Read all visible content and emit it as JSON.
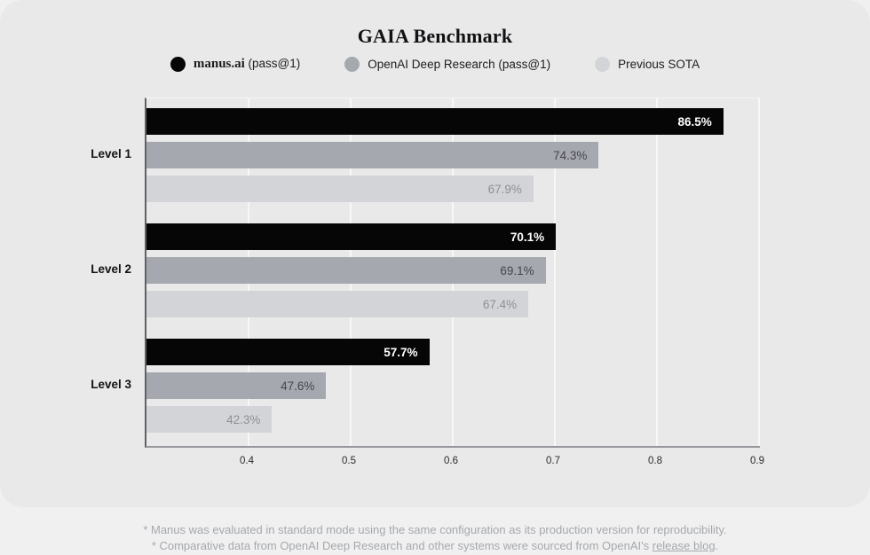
{
  "chart_data": {
    "type": "bar",
    "orientation": "horizontal",
    "title": "GAIA Benchmark",
    "categories": [
      "Level 1",
      "Level 2",
      "Level 3"
    ],
    "series": [
      {
        "name": "manus.ai (pass@1)",
        "legend_serif_part": "manus.ai",
        "legend_plain_part": " (pass@1)",
        "color": "#060606",
        "label_color": "#ffffff",
        "label_weight": 700,
        "values": [
          86.5,
          70.1,
          57.7
        ]
      },
      {
        "name": "OpenAI Deep Research (pass@1)",
        "legend_serif_part": "",
        "legend_plain_part": "OpenAI Deep Research (pass@1)",
        "color": "#a6a8af",
        "label_color": "#46464c",
        "label_weight": 400,
        "values": [
          74.3,
          69.1,
          47.6
        ]
      },
      {
        "name": "Previous SOTA",
        "legend_serif_part": "",
        "legend_plain_part": "Previous SOTA",
        "color": "#d3d4d8",
        "label_color": "#8e9095",
        "label_weight": 400,
        "values": [
          67.9,
          67.4,
          42.3
        ]
      }
    ],
    "value_suffix": "%",
    "x_ticks": [
      "0.4",
      "0.5",
      "0.6",
      "0.7",
      "0.8",
      "0.9"
    ],
    "x_tick_values": [
      0.4,
      0.5,
      0.6,
      0.7,
      0.8,
      0.9
    ],
    "xlim": [
      0.3,
      0.9
    ],
    "grid": true,
    "legend_position": "top",
    "xlabel": "",
    "ylabel": ""
  },
  "footnotes": {
    "line1": "* Manus was evaluated in standard mode using the same configuration as its production version for reproducibility.",
    "line2_prefix": "* Comparative data from OpenAI Deep Research and other systems were sourced from OpenAI's ",
    "line2_link": "release blog",
    "line2_suffix": "."
  },
  "colors": {
    "page_bg": "#f0f0f1",
    "card_bg": "#e9e9ea",
    "axis_left": "#606065",
    "axis_bottom": "#97979b",
    "gridline": "#f7f7f8"
  }
}
